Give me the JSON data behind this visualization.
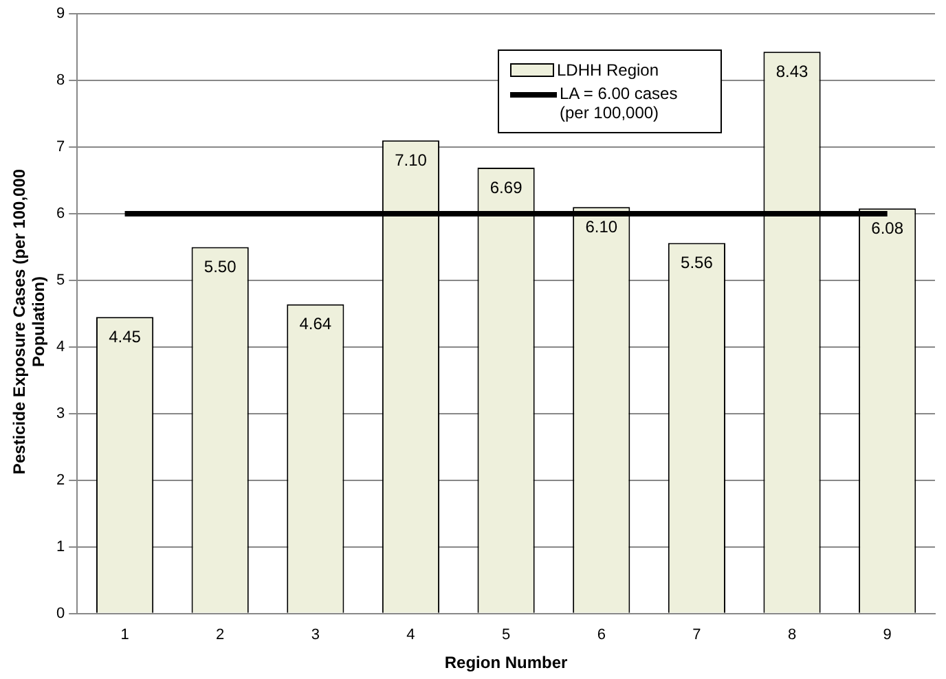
{
  "chart_data": {
    "type": "bar",
    "xlabel": "Region Number",
    "ylabel": "Pesticide Exposure Cases (per 100,000 Population)",
    "categories": [
      "1",
      "2",
      "3",
      "4",
      "5",
      "6",
      "7",
      "8",
      "9"
    ],
    "series": [
      {
        "name": "LDHH Region",
        "color": "#eef0dc",
        "values": [
          4.45,
          5.5,
          4.64,
          7.1,
          6.69,
          6.1,
          5.56,
          8.43,
          6.08
        ],
        "value_labels": [
          "4.45",
          "5.50",
          "4.64",
          "7.10",
          "6.69",
          "6.10",
          "5.56",
          "8.43",
          "6.08"
        ]
      },
      {
        "name": "LA = 6.00 cases (per 100,000)",
        "type": "line",
        "color": "#000000",
        "values": [
          6,
          6,
          6,
          6,
          6,
          6,
          6,
          6,
          6
        ]
      }
    ],
    "ylim": [
      0,
      9
    ],
    "yticks": [
      0,
      1,
      2,
      3,
      4,
      5,
      6,
      7,
      8,
      9
    ],
    "grid": "y",
    "legend": "top right"
  }
}
